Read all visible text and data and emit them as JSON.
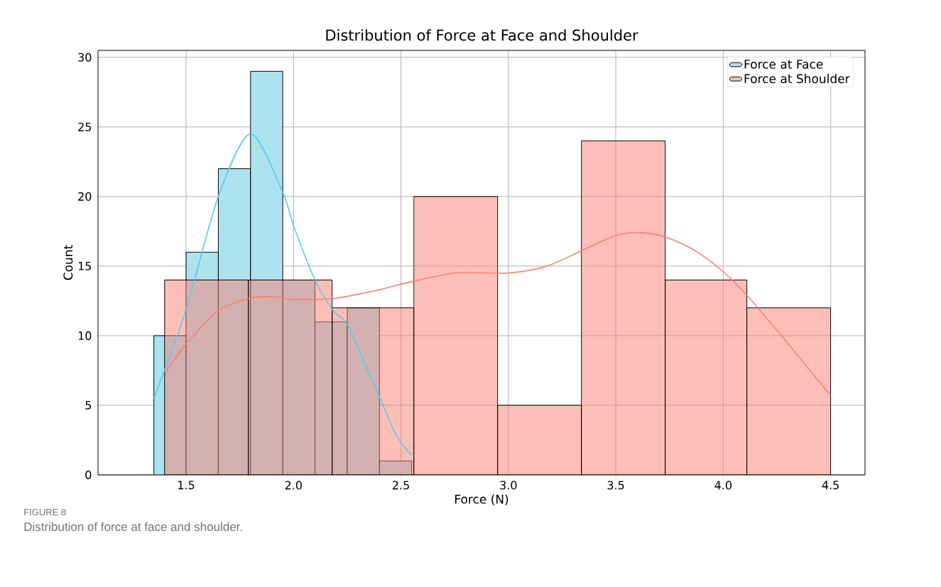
{
  "chart_data": {
    "type": "histogram",
    "title": "Distribution of Force at Face and Shoulder",
    "xlabel": "Force (N)",
    "ylabel": "Count",
    "series": [
      {
        "name": "Force at Face",
        "color": "#ade3ee",
        "bins": [
          1.35,
          1.5,
          1.65,
          1.8,
          1.95,
          2.1,
          2.25,
          2.4,
          2.55
        ],
        "values": [
          10,
          16,
          22,
          29,
          14,
          11,
          12,
          1
        ]
      },
      {
        "name": "Force at Shoulder",
        "color": "#fa8072",
        "bins": [
          1.4,
          1.79,
          2.18,
          2.56,
          2.95,
          3.34,
          3.73,
          4.11,
          4.5
        ],
        "values": [
          14,
          14,
          12,
          20,
          5,
          24,
          14,
          12
        ]
      },
      {
        "type": "line",
        "color": "#5bc8ef",
        "x": [
          1.35,
          1.5,
          1.65,
          1.8,
          1.95,
          2.0,
          2.1,
          2.18,
          2.25,
          2.32,
          2.4,
          2.48,
          2.55
        ],
        "values": [
          5.5,
          11.9,
          20,
          24.5,
          20.3,
          17.9,
          14,
          11.9,
          10.8,
          8.4,
          5.6,
          2.8,
          1.4
        ]
      },
      {
        "type": "line",
        "color": "#fa8072",
        "x": [
          1.41,
          1.5,
          1.65,
          1.8,
          1.9,
          2.0,
          2.1,
          2.2,
          2.4,
          2.5,
          2.75,
          3.0,
          3.18,
          3.34,
          3.5,
          3.61,
          3.73,
          3.87,
          4.0,
          4.11,
          4.26,
          4.5
        ],
        "values": [
          7.5,
          9.4,
          11.8,
          12.7,
          12.8,
          12.6,
          12.6,
          12.7,
          13.3,
          13.7,
          14.5,
          14.5,
          15.0,
          16.1,
          17.2,
          17.4,
          17.1,
          16.1,
          14.6,
          12.9,
          10.2,
          5.7
        ]
      }
    ],
    "xlim": [
      1.09,
      4.66
    ],
    "ylim": [
      0,
      30.5
    ],
    "xticks": [
      1.5,
      {
        "value": 2,
        "label": "2.0"
      },
      2.5,
      {
        "value": 3,
        "label": "3.0"
      },
      3.5,
      {
        "value": 4,
        "label": "4.0"
      },
      4.5
    ],
    "yticks": [
      0,
      5,
      10,
      15,
      20,
      25,
      30
    ],
    "grid": true,
    "legend": "top right",
    "annotations": [
      "FIGURE 8",
      "Distribution of force at face and shoulder."
    ]
  }
}
